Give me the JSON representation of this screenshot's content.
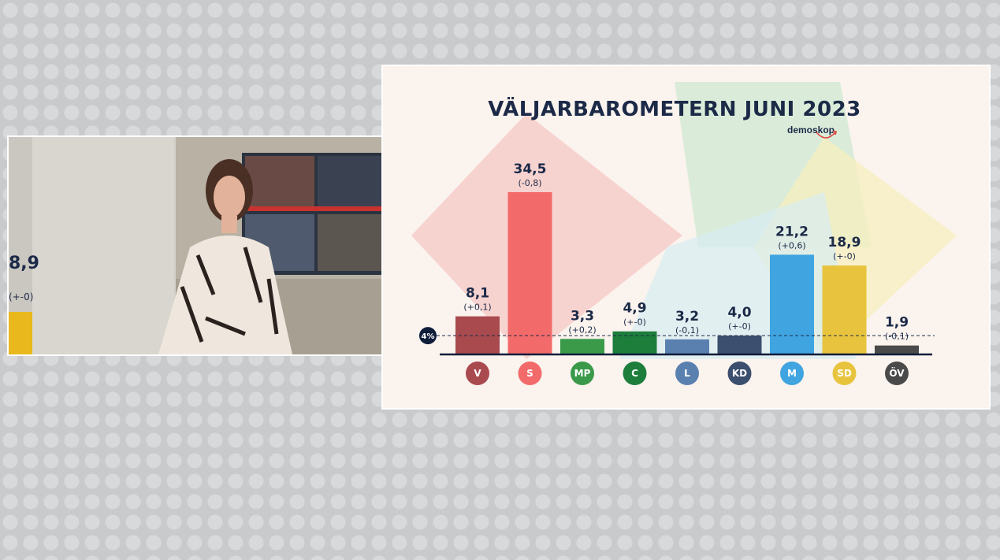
{
  "chart_data": {
    "type": "bar",
    "title": "VÄLJARBAROMETERN JUNI 2023",
    "brand": "demoskop",
    "threshold_label": "4%",
    "threshold": 4,
    "ylim": [
      0,
      36
    ],
    "categories": [
      "V",
      "S",
      "MP",
      "C",
      "L",
      "KD",
      "M",
      "SD",
      "ÖV"
    ],
    "values": [
      8.1,
      34.5,
      3.3,
      4.9,
      3.2,
      4.0,
      21.2,
      18.9,
      1.9
    ],
    "value_labels": [
      "8,1",
      "34,5",
      "3,3",
      "4,9",
      "3,2",
      "4,0",
      "21,2",
      "18,9",
      "1,9"
    ],
    "change_labels": [
      "(+0,1)",
      "(-0,8)",
      "(+0,2)",
      "(+-0)",
      "(-0,1)",
      "(+-0)",
      "(+0,6)",
      "(+-0)",
      "(-0,1)"
    ],
    "colors": [
      "#a94a4f",
      "#f26a6a",
      "#3a9a4a",
      "#1d7e3c",
      "#5a80b0",
      "#3c4f6e",
      "#3fa4e0",
      "#e8c43e",
      "#4a4a4a"
    ]
  },
  "video": {
    "side_value": "8,9",
    "side_change": "(+-0)"
  }
}
